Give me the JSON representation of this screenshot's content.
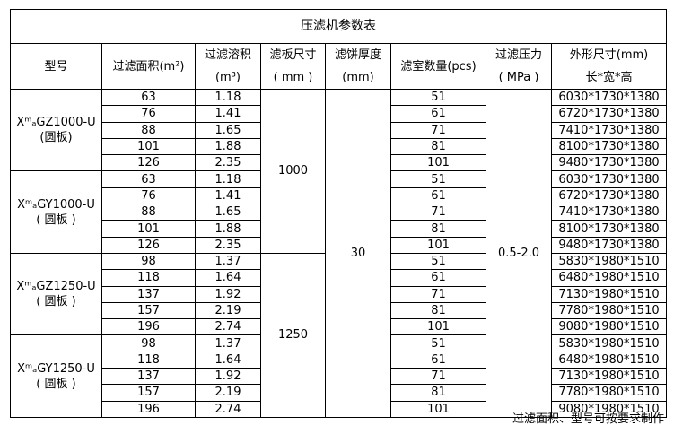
{
  "title": "压滤机参数表",
  "headers": {
    "model": "型号",
    "area": "过滤面积(m²)",
    "volume_line1": "过滤溶积",
    "volume_line2": "(m³)",
    "plate_line1": "滤板尺寸",
    "plate_line2": "( mm )",
    "cake_line1": "滤饼厚度",
    "cake_line2": "(mm)",
    "chambers": "滤室数量(pcs)",
    "pressure_line1": "过滤压力",
    "pressure_line2": "( MPa )",
    "dims_line1": "外形尺寸(mm)",
    "dims_line2": "长*宽*高"
  },
  "cake_thickness": "30",
  "pressure": "0.5-2.0",
  "plate_sizes": [
    "1000",
    "1250"
  ],
  "groups": [
    {
      "model": "XᵐₐGZ1000-U",
      "model_note": "(圆板)",
      "plate": 0,
      "rows": [
        [
          "63",
          "1.18",
          "51",
          "6030*1730*1380"
        ],
        [
          "76",
          "1.41",
          "61",
          "6720*1730*1380"
        ],
        [
          "88",
          "1.65",
          "71",
          "7410*1730*1380"
        ],
        [
          "101",
          "1.88",
          "81",
          "8100*1730*1380"
        ],
        [
          "126",
          "2.35",
          "101",
          "9480*1730*1380"
        ]
      ]
    },
    {
      "model": "XᵐₐGY1000-U",
      "model_note": "( 圆板 )",
      "plate": 0,
      "rows": [
        [
          "63",
          "1.18",
          "51",
          "6030*1730*1380"
        ],
        [
          "76",
          "1.41",
          "61",
          "6720*1730*1380"
        ],
        [
          "88",
          "1.65",
          "71",
          "7410*1730*1380"
        ],
        [
          "101",
          "1.88",
          "81",
          "8100*1730*1380"
        ],
        [
          "126",
          "2.35",
          "101",
          "9480*1730*1380"
        ]
      ]
    },
    {
      "model": "XᵐₐGZ1250-U",
      "model_note": "( 圆板 )",
      "plate": 1,
      "rows": [
        [
          "98",
          "1.37",
          "51",
          "5830*1980*1510"
        ],
        [
          "118",
          "1.64",
          "61",
          "6480*1980*1510"
        ],
        [
          "137",
          "1.92",
          "71",
          "7130*1980*1510"
        ],
        [
          "157",
          "2.19",
          "81",
          "7780*1980*1510"
        ],
        [
          "196",
          "2.74",
          "101",
          "9080*1980*1510"
        ]
      ]
    },
    {
      "model": "XᵐₐGY1250-U",
      "model_note": "( 圆板 )",
      "plate": 1,
      "rows": [
        [
          "98",
          "1.37",
          "51",
          "5830*1980*1510"
        ],
        [
          "118",
          "1.64",
          "61",
          "6480*1980*1510"
        ],
        [
          "137",
          "1.92",
          "71",
          "7130*1980*1510"
        ],
        [
          "157",
          "2.19",
          "81",
          "7780*1980*1510"
        ],
        [
          "196",
          "2.74",
          "101",
          "9080*1980*1510"
        ]
      ]
    }
  ],
  "footnote": "过滤面积、型号可按要求制作"
}
